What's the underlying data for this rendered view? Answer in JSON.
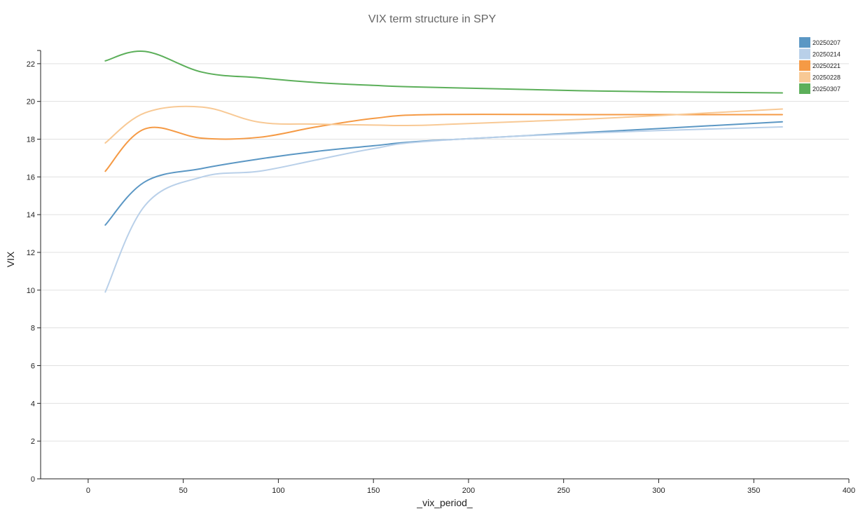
{
  "chart_data": {
    "type": "line",
    "title": "VIX term structure in SPY",
    "xlabel": "_vix_period_",
    "ylabel": "VIX",
    "xlim": [
      -25,
      400
    ],
    "ylim": [
      0,
      22.7
    ],
    "x_ticks": [
      0,
      50,
      100,
      150,
      200,
      250,
      300,
      350,
      400
    ],
    "y_ticks": [
      0,
      2,
      4,
      6,
      8,
      10,
      12,
      14,
      16,
      18,
      20,
      22
    ],
    "grid": "horizontal",
    "legend_position": "top-right",
    "x": [
      9,
      30,
      60,
      90,
      120,
      150,
      180,
      270,
      365
    ],
    "series": [
      {
        "name": "20250207",
        "color": "#5b97c4",
        "values": [
          13.45,
          15.75,
          16.45,
          16.95,
          17.35,
          17.65,
          17.92,
          18.4,
          18.92
        ]
      },
      {
        "name": "20250214",
        "color": "#b9d0e9",
        "values": [
          9.9,
          14.5,
          16.0,
          16.3,
          16.9,
          17.5,
          17.9,
          18.35,
          18.65
        ]
      },
      {
        "name": "20250221",
        "color": "#f59a45",
        "values": [
          16.3,
          18.55,
          18.05,
          18.1,
          18.65,
          19.1,
          19.3,
          19.3,
          19.3
        ]
      },
      {
        "name": "20250228",
        "color": "#f8c995",
        "values": [
          17.8,
          19.4,
          19.7,
          18.9,
          18.8,
          18.75,
          18.75,
          19.1,
          19.6
        ]
      },
      {
        "name": "20250307",
        "color": "#5caf5a",
        "values": [
          22.15,
          22.65,
          21.55,
          21.25,
          21.0,
          20.85,
          20.75,
          20.55,
          20.45
        ]
      }
    ]
  }
}
